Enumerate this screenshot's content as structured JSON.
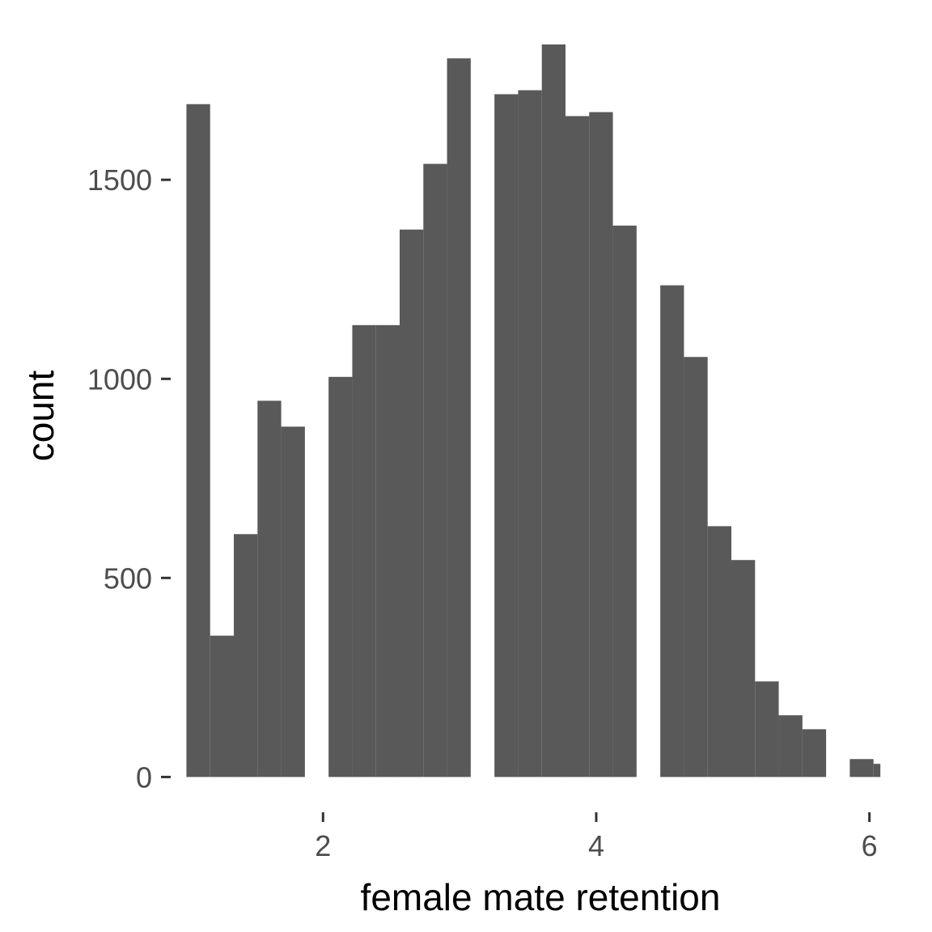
{
  "chart_data": {
    "type": "bar",
    "subtype": "histogram",
    "xlabel": "female mate retention",
    "ylabel": "count",
    "bar_color": "#595959",
    "background": "#ffffff",
    "grid": false,
    "legend": "none",
    "xlim": [
      0.95,
      6.15
    ],
    "ylim": [
      -50,
      1850
    ],
    "x_ticks": [
      2,
      4,
      6
    ],
    "y_ticks": [
      0,
      500,
      1000,
      1500
    ],
    "bins": [
      {
        "x0": 1.0,
        "x1": 1.1734,
        "count": 1690
      },
      {
        "x0": 1.1734,
        "x1": 1.3469,
        "count": 355
      },
      {
        "x0": 1.3469,
        "x1": 1.5203,
        "count": 610
      },
      {
        "x0": 1.5203,
        "x1": 1.6938,
        "count": 945
      },
      {
        "x0": 1.6938,
        "x1": 1.8672,
        "count": 880
      },
      {
        "x0": 1.8672,
        "x1": 2.0406,
        "count": 0
      },
      {
        "x0": 2.0406,
        "x1": 2.2141,
        "count": 1005
      },
      {
        "x0": 2.2141,
        "x1": 2.3875,
        "count": 1135
      },
      {
        "x0": 2.3875,
        "x1": 2.5609,
        "count": 1135
      },
      {
        "x0": 2.5609,
        "x1": 2.7344,
        "count": 1375
      },
      {
        "x0": 2.7344,
        "x1": 2.9078,
        "count": 1540
      },
      {
        "x0": 2.9078,
        "x1": 3.0813,
        "count": 1805
      },
      {
        "x0": 3.0813,
        "x1": 3.2547,
        "count": 0
      },
      {
        "x0": 3.2547,
        "x1": 3.4281,
        "count": 1715
      },
      {
        "x0": 3.4281,
        "x1": 3.6016,
        "count": 1725
      },
      {
        "x0": 3.6016,
        "x1": 3.775,
        "count": 1840
      },
      {
        "x0": 3.775,
        "x1": 3.9484,
        "count": 1660
      },
      {
        "x0": 3.9484,
        "x1": 4.1219,
        "count": 1670
      },
      {
        "x0": 4.1219,
        "x1": 4.2953,
        "count": 1385
      },
      {
        "x0": 4.2953,
        "x1": 4.4688,
        "count": 0
      },
      {
        "x0": 4.4688,
        "x1": 4.6422,
        "count": 1235
      },
      {
        "x0": 4.6422,
        "x1": 4.8156,
        "count": 1055
      },
      {
        "x0": 4.8156,
        "x1": 4.9891,
        "count": 630
      },
      {
        "x0": 4.9891,
        "x1": 5.1625,
        "count": 545
      },
      {
        "x0": 5.1625,
        "x1": 5.3359,
        "count": 240
      },
      {
        "x0": 5.3359,
        "x1": 5.5094,
        "count": 155
      },
      {
        "x0": 5.5094,
        "x1": 5.6828,
        "count": 120
      },
      {
        "x0": 5.6828,
        "x1": 5.8563,
        "count": 0
      },
      {
        "x0": 5.8563,
        "x1": 6.0297,
        "count": 45
      },
      {
        "x0": 6.0297,
        "x1": 6.2031,
        "count": 33
      }
    ]
  }
}
